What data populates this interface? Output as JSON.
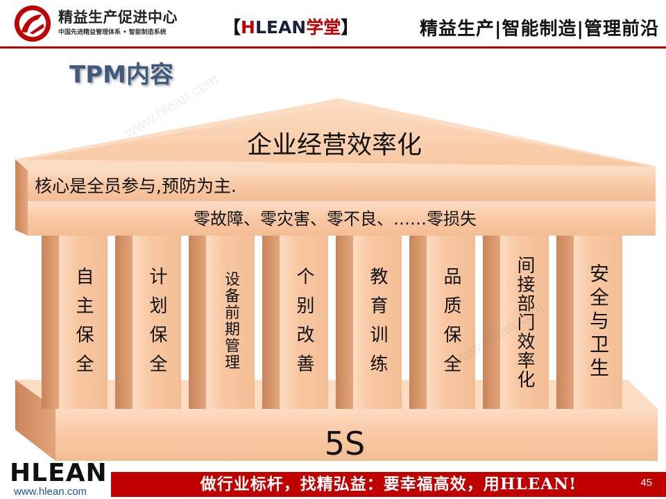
{
  "colors": {
    "accent_red": "#c00000",
    "title_blue": "#3f5a7c",
    "link_blue": "#1f4fa3",
    "temple_light": "#fcdcc3",
    "temple_front": "#f8c8a3",
    "temple_front_dark": "#f3bd94",
    "temple_side": "#c9845a",
    "temple_edge": "#e3a67b"
  },
  "header": {
    "logo_icon": "hlean-circle-logo",
    "org_name": "精益生产促进中心",
    "tagline_left": "中国先进精益管理体系",
    "tagline_bullet": "•",
    "tagline_right": "智能制造系统",
    "brand_open": "【",
    "brand_h": "H",
    "brand_lean": "LEAN",
    "brand_school": "学堂",
    "brand_close": "】",
    "slogan": "精益生产|智能制造|管理前沿"
  },
  "slide": {
    "title": "TPM内容",
    "watermark": "www.hlean.com"
  },
  "temple": {
    "roof_label": "企业经营效率化",
    "beam_upper": "核心是全员参与,预防为主.",
    "beam_lower": "零故障、零灾害、零不良、……零损失",
    "pillars": [
      {
        "label": "自主保全"
      },
      {
        "label": "计划保全"
      },
      {
        "label": "设备前期管理"
      },
      {
        "label": "个别改善"
      },
      {
        "label": "教育训练"
      },
      {
        "label": "品质保全"
      },
      {
        "label": "间接部门效率化"
      },
      {
        "label": "安全与卫生"
      }
    ],
    "base_label": "5S"
  },
  "footer": {
    "logo_text": "HLEAN",
    "website": "www.hlean.com",
    "motto": "做行业标杆，找精弘益：要幸福高效，用HLEAN!",
    "page_number": "45"
  }
}
